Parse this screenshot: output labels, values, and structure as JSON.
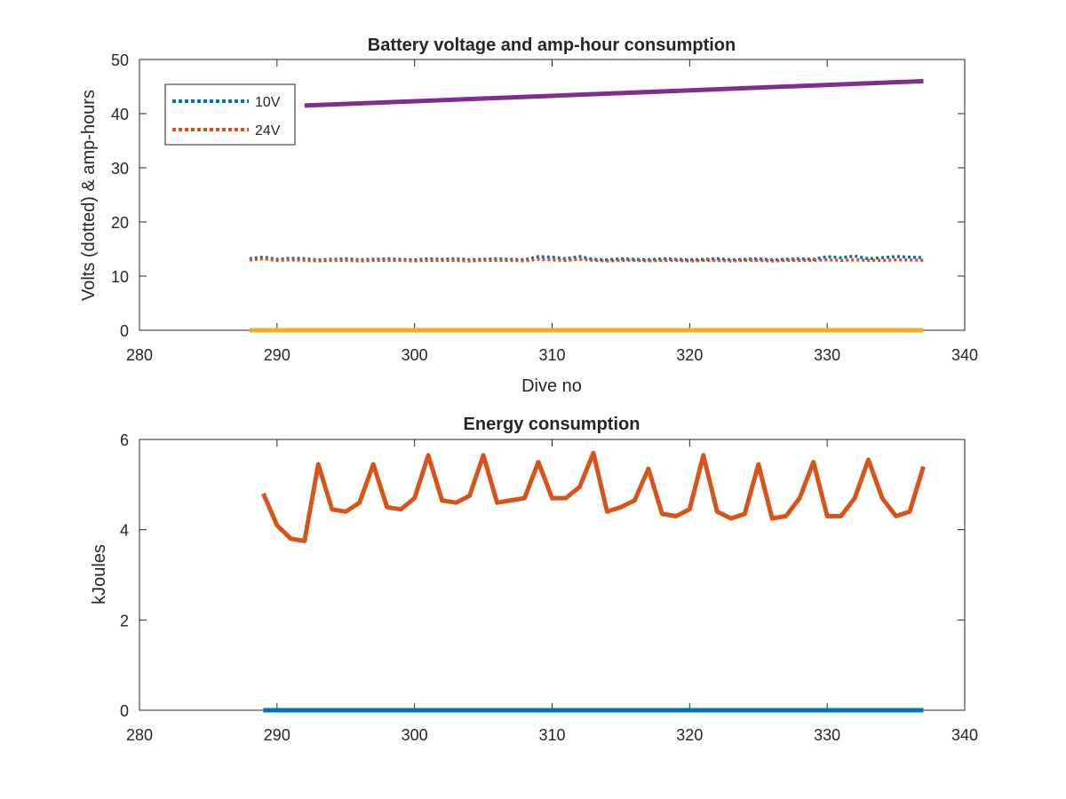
{
  "chart_data": [
    {
      "type": "line",
      "title": "Battery voltage and amp-hour consumption",
      "xlabel": "Dive no",
      "ylabel": "Volts (dotted) & amp-hours",
      "xlim": [
        280,
        340
      ],
      "ylim": [
        0,
        50
      ],
      "xticks": [
        "280",
        "290",
        "300",
        "310",
        "320",
        "330",
        "340"
      ],
      "yticks": [
        "0",
        "10",
        "20",
        "30",
        "40",
        "50"
      ],
      "legend_position": "top-left",
      "series": [
        {
          "name": "10V",
          "color": "#0072BD",
          "style": "dotted",
          "x": [
            288,
            289,
            290,
            291,
            292,
            293,
            294,
            295,
            296,
            297,
            298,
            299,
            300,
            301,
            302,
            303,
            304,
            305,
            306,
            307,
            308,
            309,
            310,
            311,
            312,
            313,
            314,
            315,
            316,
            317,
            318,
            319,
            320,
            321,
            322,
            323,
            324,
            325,
            326,
            327,
            328,
            329,
            330,
            331,
            332,
            333,
            334,
            335,
            336,
            337
          ],
          "y": [
            13.2,
            13.5,
            13.1,
            13.3,
            13.2,
            13.0,
            13.1,
            13.2,
            13.0,
            13.1,
            13.2,
            13.1,
            13.0,
            13.2,
            13.1,
            13.2,
            13.0,
            13.1,
            13.2,
            13.1,
            13.0,
            13.6,
            13.5,
            13.2,
            13.6,
            13.1,
            13.0,
            13.2,
            13.1,
            13.0,
            13.2,
            13.1,
            13.0,
            13.1,
            13.2,
            13.0,
            13.1,
            13.2,
            13.0,
            13.1,
            13.2,
            13.1,
            13.6,
            13.4,
            13.7,
            13.2,
            13.4,
            13.6,
            13.5,
            13.4
          ]
        },
        {
          "name": "24V",
          "color": "#D95319",
          "style": "dotted",
          "x": [
            288,
            289,
            290,
            291,
            292,
            293,
            294,
            295,
            296,
            297,
            298,
            299,
            300,
            301,
            302,
            303,
            304,
            305,
            306,
            307,
            308,
            309,
            310,
            311,
            312,
            313,
            314,
            315,
            316,
            317,
            318,
            319,
            320,
            321,
            322,
            323,
            324,
            325,
            326,
            327,
            328,
            329,
            330,
            331,
            332,
            333,
            334,
            335,
            336,
            337
          ],
          "y": [
            13.0,
            13.2,
            12.9,
            13.0,
            12.9,
            12.8,
            12.9,
            12.9,
            12.8,
            12.9,
            12.9,
            12.9,
            12.8,
            12.9,
            12.9,
            12.9,
            12.8,
            12.9,
            12.9,
            12.9,
            12.8,
            13.1,
            13.0,
            12.9,
            13.1,
            12.9,
            12.8,
            12.9,
            12.9,
            12.8,
            12.9,
            12.9,
            12.8,
            12.9,
            12.9,
            12.8,
            12.9,
            12.9,
            12.8,
            12.9,
            12.9,
            12.9,
            13.0,
            12.9,
            13.0,
            12.9,
            12.9,
            13.0,
            13.0,
            12.9
          ]
        },
        {
          "color": "#EDB120",
          "style": "solid",
          "x": [
            288,
            337
          ],
          "y": [
            0,
            0
          ]
        },
        {
          "color": "#7E2F8E",
          "style": "solid",
          "x": [
            292,
            337
          ],
          "y": [
            41.5,
            46.0
          ]
        }
      ]
    },
    {
      "type": "line",
      "title": "Energy consumption",
      "xlabel": "",
      "ylabel": "kJoules",
      "xlim": [
        280,
        340
      ],
      "ylim": [
        0,
        6
      ],
      "xticks": [
        "280",
        "290",
        "300",
        "310",
        "320",
        "330",
        "340"
      ],
      "yticks": [
        "0",
        "2",
        "4",
        "6"
      ],
      "series": [
        {
          "color": "#0072BD",
          "style": "solid",
          "x": [
            289,
            337
          ],
          "y": [
            0,
            0
          ]
        },
        {
          "color": "#D95319",
          "style": "solid",
          "x": [
            289,
            290,
            291,
            292,
            293,
            294,
            295,
            296,
            297,
            298,
            299,
            300,
            301,
            302,
            303,
            304,
            305,
            306,
            307,
            308,
            309,
            310,
            311,
            312,
            313,
            314,
            315,
            316,
            317,
            318,
            319,
            320,
            321,
            322,
            323,
            324,
            325,
            326,
            327,
            328,
            329,
            330,
            331,
            332,
            333,
            334,
            335,
            336,
            337
          ],
          "y": [
            4.8,
            4.1,
            3.8,
            3.75,
            5.45,
            4.45,
            4.4,
            4.6,
            5.45,
            4.5,
            4.45,
            4.7,
            5.65,
            4.65,
            4.6,
            4.75,
            5.65,
            4.6,
            4.65,
            4.7,
            5.5,
            4.7,
            4.7,
            4.95,
            5.7,
            4.4,
            4.5,
            4.65,
            5.35,
            4.35,
            4.3,
            4.45,
            5.65,
            4.4,
            4.25,
            4.35,
            5.45,
            4.25,
            4.3,
            4.7,
            5.5,
            4.3,
            4.3,
            4.7,
            5.55,
            4.7,
            4.3,
            4.4,
            5.4
          ]
        }
      ]
    }
  ]
}
